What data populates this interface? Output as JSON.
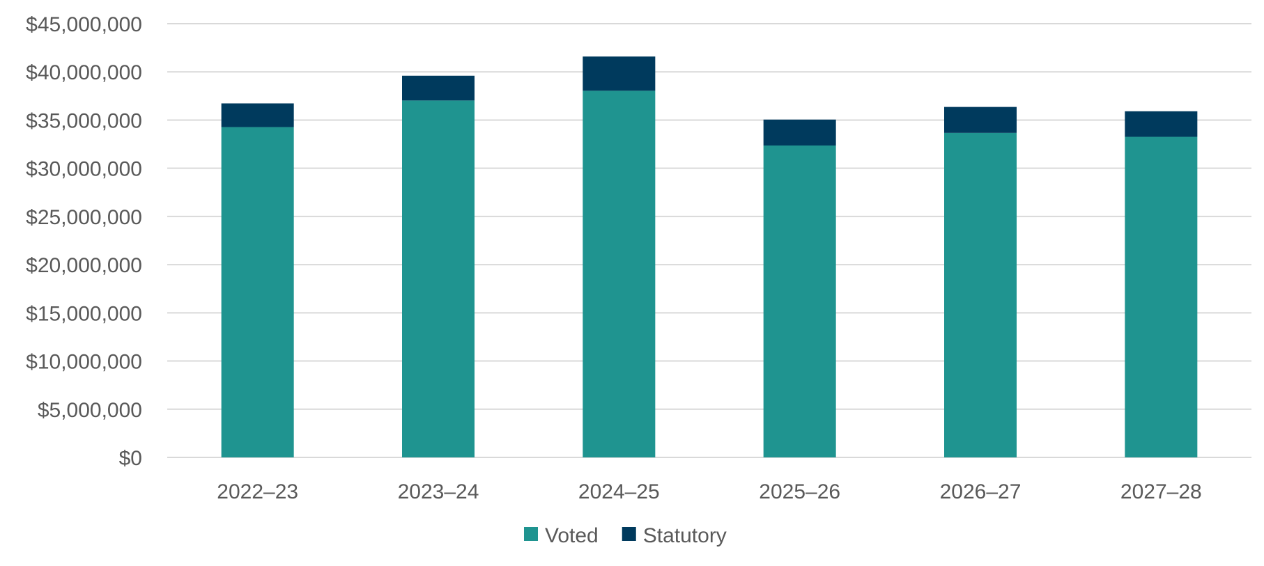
{
  "chart_data": {
    "type": "bar",
    "stacked": true,
    "title": "",
    "xlabel": "",
    "ylabel": "",
    "categories": [
      "2022–23",
      "2023–24",
      "2024–25",
      "2025–26",
      "2026–27",
      "2027–28"
    ],
    "series": [
      {
        "name": "Voted",
        "color": "#1f9490",
        "values": [
          34270000,
          37030000,
          38040000,
          32360000,
          33670000,
          33260000
        ]
      },
      {
        "name": "Statutory",
        "color": "#003a5d",
        "values": [
          2460000,
          2570000,
          3550000,
          2690000,
          2690000,
          2650000
        ]
      }
    ],
    "ylim": [
      0,
      45000000
    ],
    "yticks": [
      0,
      5000000,
      10000000,
      15000000,
      20000000,
      25000000,
      30000000,
      35000000,
      40000000,
      45000000
    ],
    "ytick_labels": [
      "$0",
      "$5,000,000",
      "$10,000,000",
      "$15,000,000",
      "$20,000,000",
      "$25,000,000",
      "$30,000,000",
      "$35,000,000",
      "$40,000,000",
      "$45,000,000"
    ],
    "grid": "horizontal",
    "legend_position": "bottom"
  }
}
